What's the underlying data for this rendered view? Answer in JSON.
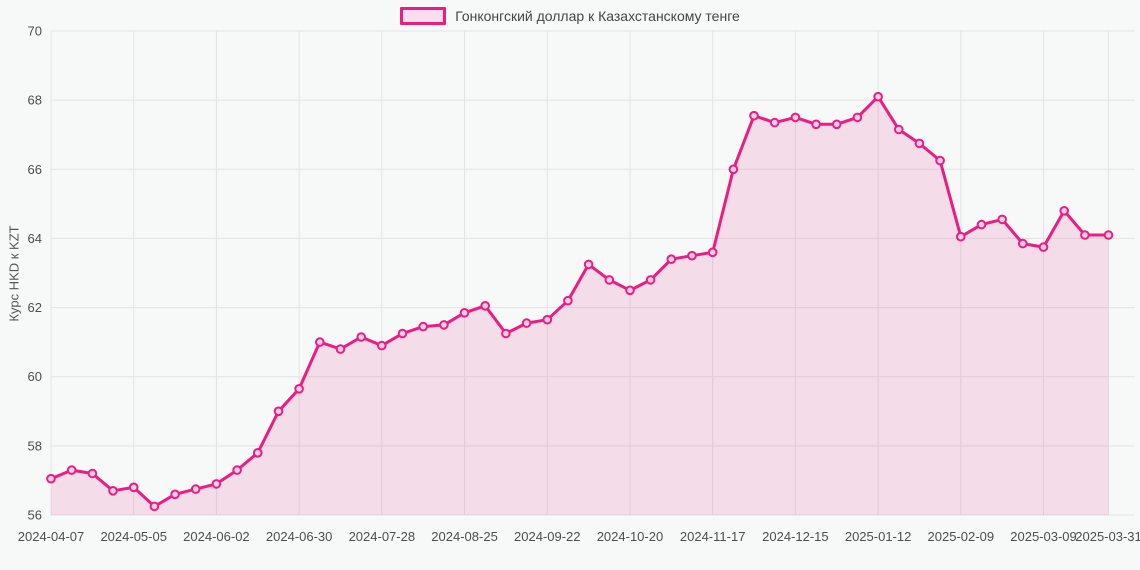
{
  "page": {
    "background": "#f7f8f8"
  },
  "chart_data": {
    "type": "line",
    "legend": "Гонконгский доллар к Казахстанскому тенге",
    "ylabel": "Курс HKD к KZT",
    "line_color": "#e81e82",
    "area_fill": "rgba(232,30,130,0.13)",
    "marker_fill": "#f8d0e5",
    "grid_color": "#e3e3e3",
    "tick_color": "#4d4d4d",
    "ylim": [
      56,
      70
    ],
    "y_ticks": [
      56,
      58,
      60,
      62,
      64,
      66,
      68,
      70
    ],
    "x_tick_labels": [
      "2024-04-07",
      "2024-05-05",
      "2024-06-02",
      "2024-06-30",
      "2024-07-28",
      "2024-08-25",
      "2024-09-22",
      "2024-10-20",
      "2024-11-17",
      "2024-12-15",
      "2025-01-12",
      "2025-02-09",
      "2025-03-09",
      "2025-03-31"
    ],
    "legend_position": "top-center",
    "grid": true,
    "x": [
      "2024-04-07",
      "2024-04-14",
      "2024-04-21",
      "2024-04-28",
      "2024-05-05",
      "2024-05-12",
      "2024-05-19",
      "2024-05-26",
      "2024-06-02",
      "2024-06-09",
      "2024-06-16",
      "2024-06-23",
      "2024-06-30",
      "2024-07-07",
      "2024-07-14",
      "2024-07-21",
      "2024-07-28",
      "2024-08-04",
      "2024-08-11",
      "2024-08-18",
      "2024-08-25",
      "2024-09-01",
      "2024-09-08",
      "2024-09-15",
      "2024-09-22",
      "2024-09-29",
      "2024-10-06",
      "2024-10-13",
      "2024-10-20",
      "2024-10-27",
      "2024-11-03",
      "2024-11-10",
      "2024-11-17",
      "2024-11-24",
      "2024-12-01",
      "2024-12-08",
      "2024-12-15",
      "2024-12-22",
      "2024-12-29",
      "2025-01-05",
      "2025-01-12",
      "2025-01-19",
      "2025-01-26",
      "2025-02-02",
      "2025-02-09",
      "2025-02-16",
      "2025-02-23",
      "2025-03-02",
      "2025-03-09",
      "2025-03-16",
      "2025-03-23",
      "2025-03-31"
    ],
    "values": [
      57.05,
      57.3,
      57.2,
      56.7,
      56.8,
      56.25,
      56.6,
      56.75,
      56.9,
      57.3,
      57.8,
      59.0,
      59.65,
      61.0,
      60.8,
      61.15,
      60.9,
      61.25,
      61.45,
      61.5,
      61.85,
      62.05,
      61.25,
      61.55,
      61.65,
      62.2,
      63.25,
      62.8,
      62.5,
      62.8,
      63.4,
      63.5,
      63.6,
      66.0,
      67.55,
      67.35,
      67.5,
      67.3,
      67.3,
      67.5,
      68.1,
      67.15,
      66.75,
      66.25,
      64.05,
      64.4,
      64.55,
      63.85,
      63.75,
      64.8,
      64.1,
      64.1
    ]
  }
}
